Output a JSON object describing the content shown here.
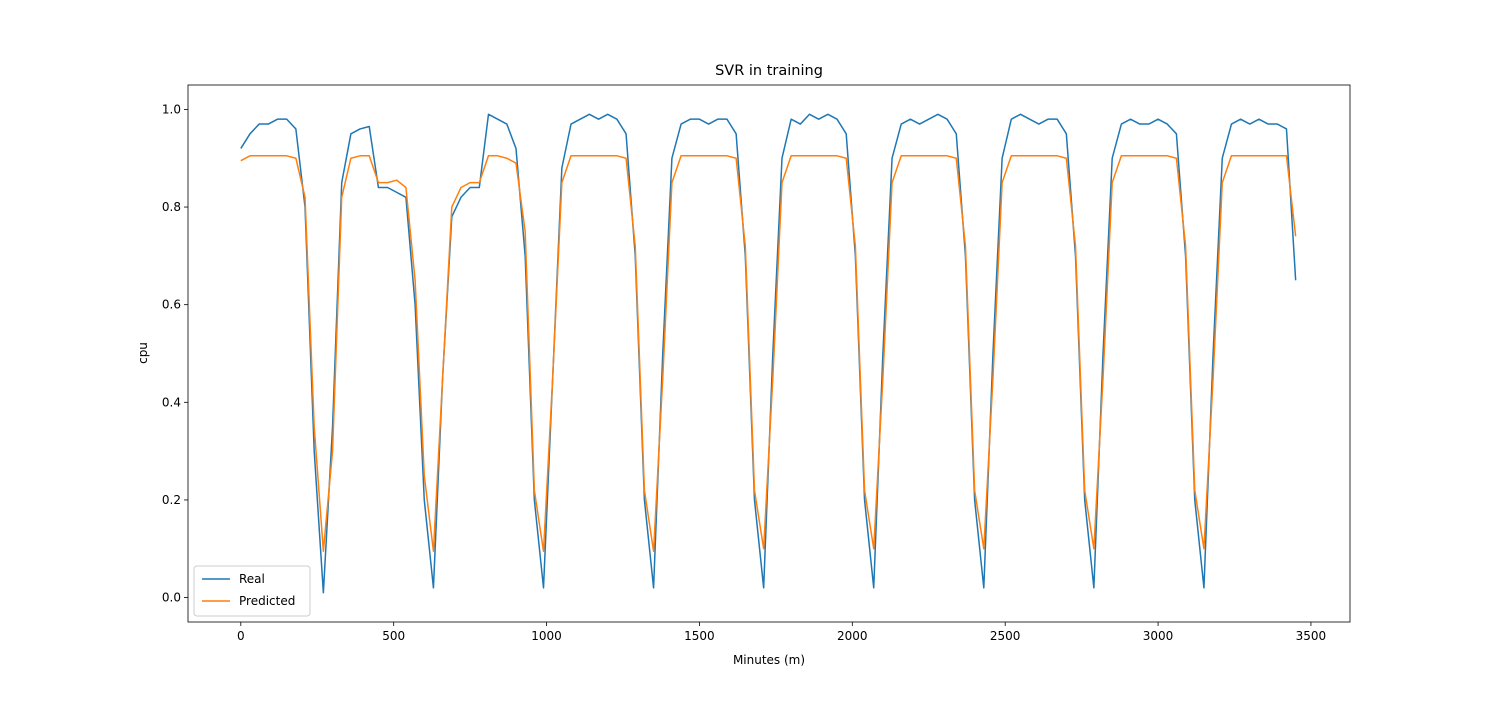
{
  "chart_data": {
    "type": "line",
    "title": "SVR in training",
    "xlabel": "Minutes (m)",
    "ylabel": "cpu",
    "x": [
      0,
      30,
      60,
      90,
      120,
      150,
      180,
      210,
      240,
      270,
      300,
      330,
      360,
      390,
      420,
      450,
      480,
      510,
      540,
      570,
      600,
      630,
      660,
      690,
      720,
      750,
      780,
      810,
      840,
      870,
      900,
      930,
      960,
      990,
      1020,
      1050,
      1080,
      1110,
      1140,
      1170,
      1200,
      1230,
      1260,
      1290,
      1320,
      1350,
      1380,
      1410,
      1440,
      1470,
      1500,
      1530,
      1560,
      1590,
      1620,
      1650,
      1680,
      1710,
      1740,
      1770,
      1800,
      1830,
      1860,
      1890,
      1920,
      1950,
      1980,
      2010,
      2040,
      2070,
      2100,
      2130,
      2160,
      2190,
      2220,
      2250,
      2280,
      2310,
      2340,
      2370,
      2400,
      2430,
      2460,
      2490,
      2520,
      2550,
      2580,
      2610,
      2640,
      2670,
      2700,
      2730,
      2760,
      2790,
      2820,
      2850,
      2880,
      2910,
      2940,
      2970,
      3000,
      3030,
      3060,
      3090,
      3120,
      3150,
      3180,
      3210,
      3240,
      3270,
      3300,
      3330,
      3360,
      3390,
      3420,
      3450
    ],
    "series": [
      {
        "name": "Real",
        "color": "#1f77b4",
        "values": [
          0.92,
          0.95,
          0.97,
          0.97,
          0.98,
          0.98,
          0.96,
          0.8,
          0.3,
          0.01,
          0.35,
          0.85,
          0.95,
          0.96,
          0.965,
          0.84,
          0.84,
          0.83,
          0.82,
          0.6,
          0.2,
          0.02,
          0.45,
          0.78,
          0.82,
          0.84,
          0.84,
          0.99,
          0.98,
          0.97,
          0.92,
          0.7,
          0.2,
          0.02,
          0.45,
          0.88,
          0.97,
          0.98,
          0.99,
          0.98,
          0.99,
          0.98,
          0.95,
          0.7,
          0.2,
          0.02,
          0.5,
          0.9,
          0.97,
          0.98,
          0.98,
          0.97,
          0.98,
          0.98,
          0.95,
          0.7,
          0.2,
          0.02,
          0.5,
          0.9,
          0.98,
          0.97,
          0.99,
          0.98,
          0.99,
          0.98,
          0.95,
          0.7,
          0.2,
          0.02,
          0.5,
          0.9,
          0.97,
          0.98,
          0.97,
          0.98,
          0.99,
          0.98,
          0.95,
          0.7,
          0.2,
          0.02,
          0.5,
          0.9,
          0.98,
          0.99,
          0.98,
          0.97,
          0.98,
          0.98,
          0.95,
          0.7,
          0.2,
          0.02,
          0.5,
          0.9,
          0.97,
          0.98,
          0.97,
          0.97,
          0.98,
          0.97,
          0.95,
          0.7,
          0.2,
          0.02,
          0.5,
          0.9,
          0.97,
          0.98,
          0.97,
          0.98,
          0.97,
          0.97,
          0.96,
          0.65
        ]
      },
      {
        "name": "Predicted",
        "color": "#ff7f0e",
        "values": [
          0.895,
          0.905,
          0.905,
          0.905,
          0.905,
          0.905,
          0.9,
          0.82,
          0.35,
          0.095,
          0.3,
          0.82,
          0.9,
          0.905,
          0.905,
          0.85,
          0.85,
          0.855,
          0.84,
          0.65,
          0.25,
          0.095,
          0.45,
          0.8,
          0.84,
          0.85,
          0.85,
          0.905,
          0.905,
          0.9,
          0.89,
          0.75,
          0.22,
          0.095,
          0.45,
          0.85,
          0.905,
          0.905,
          0.905,
          0.905,
          0.905,
          0.905,
          0.9,
          0.72,
          0.22,
          0.095,
          0.45,
          0.85,
          0.905,
          0.905,
          0.905,
          0.905,
          0.905,
          0.905,
          0.9,
          0.72,
          0.22,
          0.1,
          0.45,
          0.85,
          0.905,
          0.905,
          0.905,
          0.905,
          0.905,
          0.905,
          0.9,
          0.72,
          0.22,
          0.1,
          0.45,
          0.85,
          0.905,
          0.905,
          0.905,
          0.905,
          0.905,
          0.905,
          0.9,
          0.72,
          0.22,
          0.1,
          0.45,
          0.85,
          0.905,
          0.905,
          0.905,
          0.905,
          0.905,
          0.905,
          0.9,
          0.72,
          0.22,
          0.1,
          0.45,
          0.85,
          0.905,
          0.905,
          0.905,
          0.905,
          0.905,
          0.905,
          0.9,
          0.72,
          0.22,
          0.1,
          0.45,
          0.85,
          0.905,
          0.905,
          0.905,
          0.905,
          0.905,
          0.905,
          0.905,
          0.74
        ]
      }
    ],
    "xlim": [
      -172.75,
      3627.75
    ],
    "xticks": [
      0,
      500,
      1000,
      1500,
      2000,
      2500,
      3000,
      3500
    ],
    "ylim": [
      -0.05,
      1.05
    ],
    "yticks": [
      {
        "value": 0,
        "label": "0.0"
      },
      0.2,
      0.4,
      0.6,
      0.8,
      {
        "value": 1,
        "label": "1.0"
      }
    ],
    "legend": "lower left"
  }
}
